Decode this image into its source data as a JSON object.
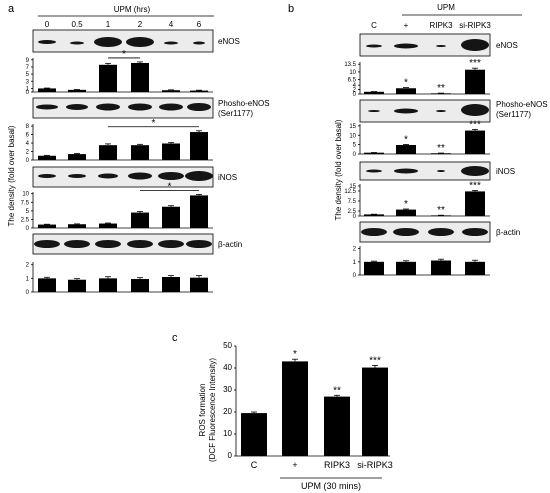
{
  "panel_labels": {
    "a": "a",
    "b": "b",
    "c": "c"
  },
  "shared_ylabel": "The density (fold over basal)",
  "panel_a": {
    "header": "UPM (hrs)",
    "lanes": [
      "0",
      "0.5",
      "1",
      "2",
      "4",
      "6"
    ],
    "blot_labels": {
      "enos": "eNOS",
      "peNOS_line1": "Phosho-eNOS",
      "peNOS_line2": "(Ser1177)",
      "inos": "iNOS",
      "actin": "β-actin"
    }
  },
  "panel_b": {
    "header": "UPM",
    "lanes": [
      "C",
      "+",
      "RIPK3",
      "si-RIPK3"
    ],
    "blot_labels": {
      "enos": "eNOS",
      "peNOS_line1": "Phosho-eNOS",
      "peNOS_line2": "(Ser1177)",
      "inos": "iNOS",
      "actin": "β-actin"
    }
  },
  "chart_data": [
    {
      "id": "a-eNOS",
      "type": "bar",
      "categories": [
        "0",
        "0.5",
        "1",
        "2",
        "4",
        "6"
      ],
      "values": [
        1,
        0.6,
        7.6,
        8.1,
        0.5,
        0.4
      ],
      "errors": [
        0.1,
        0.1,
        0.4,
        0.3,
        0.1,
        0.1
      ],
      "yticks": [
        0,
        1,
        3,
        5,
        7,
        9
      ],
      "ylim": [
        0,
        9.5
      ],
      "annotations": [
        {
          "text": "*",
          "from": 2,
          "to": 3
        }
      ]
    },
    {
      "id": "a-pheNOS",
      "type": "bar",
      "categories": [
        "0",
        "0.5",
        "1",
        "2",
        "4",
        "6"
      ],
      "values": [
        1,
        1.4,
        3.5,
        3.5,
        3.9,
        6.6
      ],
      "errors": [
        0.1,
        0.15,
        0.3,
        0.2,
        0.2,
        0.3
      ],
      "yticks": [
        0,
        2,
        4,
        6,
        8
      ],
      "ylim": [
        0,
        8.5
      ],
      "annotations": [
        {
          "text": "*",
          "from": 2,
          "to": 5
        }
      ]
    },
    {
      "id": "a-iNOS",
      "type": "bar",
      "categories": [
        "0",
        "0.5",
        "1",
        "2",
        "4",
        "6"
      ],
      "values": [
        1.0,
        1.1,
        1.3,
        4.5,
        6.2,
        9.5
      ],
      "errors": [
        0.1,
        0.1,
        0.15,
        0.3,
        0.3,
        0.3
      ],
      "yticks": [
        0,
        2.5,
        5,
        7.5,
        10
      ],
      "ylim": [
        0,
        10.5
      ],
      "annotations": [
        {
          "text": "*",
          "from": 3,
          "to": 5
        }
      ]
    },
    {
      "id": "a-actin",
      "type": "bar",
      "categories": [
        "0",
        "0.5",
        "1",
        "2",
        "4",
        "6"
      ],
      "values": [
        1.0,
        0.9,
        1.0,
        0.95,
        1.1,
        1.05
      ],
      "errors": [
        0.08,
        0.08,
        0.12,
        0.1,
        0.1,
        0.15
      ],
      "yticks": [
        0,
        1,
        2
      ],
      "ylim": [
        0,
        2.2
      ],
      "annotations": []
    },
    {
      "id": "b-eNOS",
      "type": "bar",
      "categories": [
        "C",
        "+",
        "RIPK3",
        "si-RIPK3"
      ],
      "values": [
        1,
        2.6,
        0.3,
        11
      ],
      "errors": [
        0.1,
        0.3,
        0.1,
        0.7
      ],
      "yticks": [
        0,
        2,
        4,
        6.5,
        10,
        13.5
      ],
      "ylim": [
        0,
        14.5
      ],
      "annotations": [
        {
          "text": "*",
          "at": 1
        },
        {
          "text": "**",
          "at": 2
        },
        {
          "text": "***",
          "at": 3
        }
      ]
    },
    {
      "id": "b-pheNOS",
      "type": "bar",
      "categories": [
        "C",
        "+",
        "RIPK3",
        "si-RIPK3"
      ],
      "values": [
        0.7,
        4.8,
        0.4,
        12.5
      ],
      "errors": [
        0.1,
        0.3,
        0.1,
        0.6
      ],
      "yticks": [
        0,
        5,
        10,
        15
      ],
      "ylim": [
        0,
        16
      ],
      "annotations": [
        {
          "text": "*",
          "at": 1
        },
        {
          "text": "**",
          "at": 2
        },
        {
          "text": "***",
          "at": 3
        }
      ]
    },
    {
      "id": "b-iNOS",
      "type": "bar",
      "categories": [
        "C",
        "+",
        "RIPK3",
        "si-RIPK3"
      ],
      "values": [
        0.8,
        3.2,
        0.3,
        12.3
      ],
      "errors": [
        0.1,
        0.3,
        0.1,
        0.5
      ],
      "yticks": [
        0,
        2.5,
        7.5,
        12.5,
        15
      ],
      "ylim": [
        0,
        16
      ],
      "annotations": [
        {
          "text": "*",
          "at": 1
        },
        {
          "text": "**",
          "at": 2
        },
        {
          "text": "***",
          "at": 3
        }
      ]
    },
    {
      "id": "b-actin",
      "type": "bar",
      "categories": [
        "C",
        "+",
        "RIPK3",
        "si-RIPK3"
      ],
      "values": [
        1.0,
        1.0,
        1.1,
        1.0
      ],
      "errors": [
        0.05,
        0.08,
        0.1,
        0.12
      ],
      "yticks": [
        0,
        1,
        2
      ],
      "ylim": [
        0,
        2.2
      ],
      "annotations": []
    },
    {
      "id": "c-ROS",
      "type": "bar",
      "categories": [
        "C",
        "+",
        "RIPK3",
        "si-RIPK3"
      ],
      "values": [
        19.5,
        43,
        27,
        40.2
      ],
      "errors": [
        0.5,
        1.0,
        0.6,
        1.0
      ],
      "yticks": [
        0,
        10,
        20,
        30,
        40,
        50
      ],
      "ylim": [
        0,
        50
      ],
      "ylabel_line1": "ROS formation",
      "ylabel_line2": "(DCF Fluorescence Intensity)",
      "xgroup_label": "UPM (30 mins)",
      "annotations": [
        {
          "text": "*",
          "at": 1
        },
        {
          "text": "**",
          "at": 2
        },
        {
          "text": "***",
          "at": 3
        }
      ]
    }
  ]
}
